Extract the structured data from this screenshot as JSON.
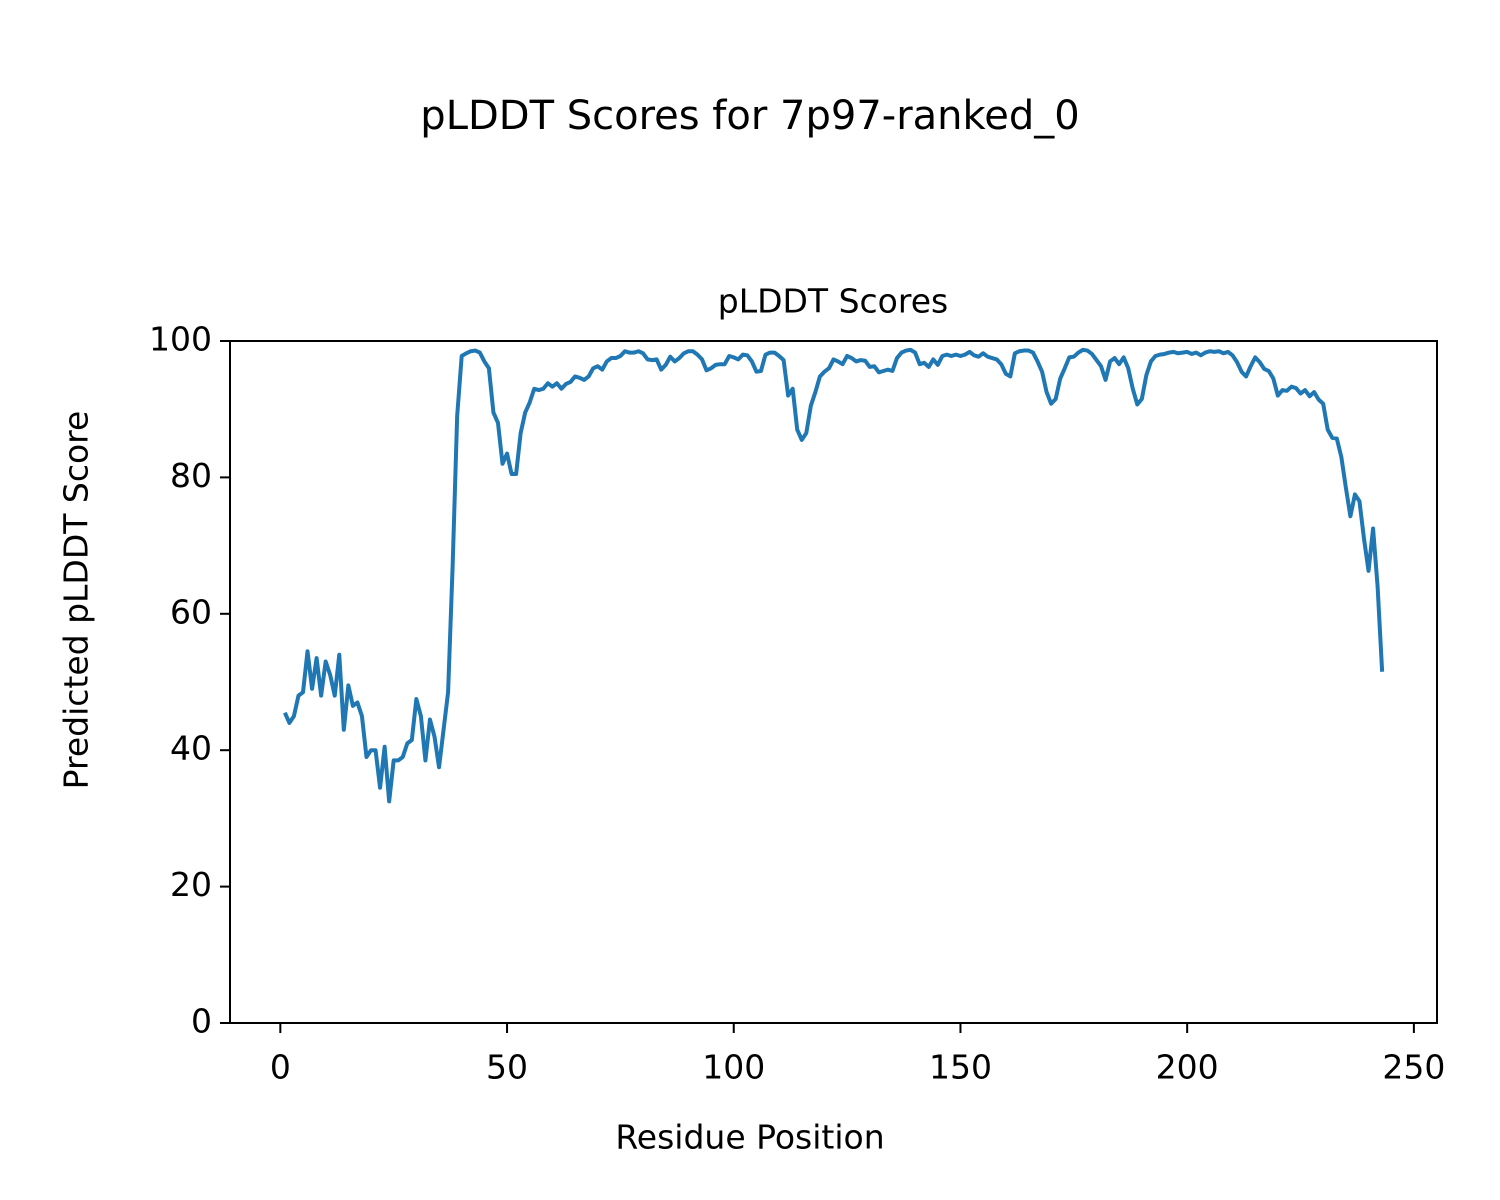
{
  "chart_data": {
    "type": "line",
    "suptitle": "pLDDT Scores for 7p97-ranked_0",
    "title": "pLDDT Scores",
    "xlabel": "Residue Position",
    "ylabel": "Predicted pLDDT Score",
    "xlim": [
      -11.1,
      255.1
    ],
    "ylim": [
      0,
      100
    ],
    "xticks": [
      0,
      50,
      100,
      150,
      200,
      250
    ],
    "yticks": [
      0,
      20,
      40,
      60,
      80,
      100
    ],
    "x": [
      1,
      2,
      3,
      4,
      5,
      6,
      7,
      8,
      9,
      10,
      11,
      12,
      13,
      14,
      15,
      16,
      17,
      18,
      19,
      20,
      21,
      22,
      23,
      24,
      25,
      26,
      27,
      28,
      29,
      30,
      31,
      32,
      33,
      34,
      35,
      36,
      37,
      38,
      39,
      40,
      41,
      42,
      43,
      44,
      45,
      46,
      47,
      48,
      49,
      50,
      51,
      52,
      53,
      54,
      55,
      56,
      57,
      58,
      59,
      60,
      61,
      62,
      63,
      64,
      65,
      66,
      67,
      68,
      69,
      70,
      71,
      72,
      73,
      74,
      75,
      76,
      77,
      78,
      79,
      80,
      81,
      82,
      83,
      84,
      85,
      86,
      87,
      88,
      89,
      90,
      91,
      92,
      93,
      94,
      95,
      96,
      97,
      98,
      99,
      100,
      101,
      102,
      103,
      104,
      105,
      106,
      107,
      108,
      109,
      110,
      111,
      112,
      113,
      114,
      115,
      116,
      117,
      118,
      119,
      120,
      121,
      122,
      123,
      124,
      125,
      126,
      127,
      128,
      129,
      130,
      131,
      132,
      133,
      134,
      135,
      136,
      137,
      138,
      139,
      140,
      141,
      142,
      143,
      144,
      145,
      146,
      147,
      148,
      149,
      150,
      151,
      152,
      153,
      154,
      155,
      156,
      157,
      158,
      159,
      160,
      161,
      162,
      163,
      164,
      165,
      166,
      167,
      168,
      169,
      170,
      171,
      172,
      173,
      174,
      175,
      176,
      177,
      178,
      179,
      180,
      181,
      182,
      183,
      184,
      185,
      186,
      187,
      188,
      189,
      190,
      191,
      192,
      193,
      194,
      195,
      196,
      197,
      198,
      199,
      200,
      201,
      202,
      203,
      204,
      205,
      206,
      207,
      208,
      209,
      210,
      211,
      212,
      213,
      214,
      215,
      216,
      217,
      218,
      219,
      220,
      221,
      222,
      223,
      224,
      225,
      226,
      227,
      228,
      229,
      230,
      231,
      232,
      233,
      234,
      235,
      236,
      237,
      238,
      239,
      240,
      241,
      242,
      243
    ],
    "series": [
      {
        "name": "pLDDT",
        "color": "#1f77b4",
        "values": [
          45.5,
          44,
          45,
          48,
          48.5,
          54.5,
          49,
          53.5,
          48,
          53,
          51,
          48,
          54,
          43,
          49.5,
          46.5,
          47,
          45,
          39,
          40,
          40,
          34.5,
          40.5,
          32.5,
          38.5,
          38.5,
          39,
          41,
          41.5,
          47.5,
          45,
          38.5,
          44.5,
          42,
          37.5,
          43,
          48.5,
          67,
          89,
          97.8,
          98.2,
          98.5,
          98.6,
          98.3,
          97,
          96,
          89.5,
          88,
          82,
          83.5,
          80.5,
          80.5,
          86.5,
          89.5,
          91,
          93,
          92.8,
          93,
          93.8,
          93.3,
          93.8,
          93,
          93.7,
          94,
          94.8,
          94.6,
          94.3,
          94.8,
          96,
          96.3,
          95.8,
          97,
          97.5,
          97.5,
          97.8,
          98.5,
          98.3,
          98.3,
          98.5,
          98.2,
          97.3,
          97.2,
          97.3,
          95.8,
          96.5,
          97.7,
          97,
          97.5,
          98.2,
          98.5,
          98.5,
          98,
          97.3,
          95.7,
          96,
          96.5,
          96.6,
          96.6,
          97.8,
          97.6,
          97.3,
          98,
          97.9,
          97,
          95.5,
          95.6,
          98,
          98.3,
          98.3,
          97.8,
          97.2,
          92,
          93,
          87,
          85.5,
          86.5,
          90.5,
          92.5,
          94.8,
          95.5,
          96,
          97.3,
          97,
          96.6,
          97.8,
          97.5,
          97,
          97.2,
          97.1,
          96.2,
          96.3,
          95.4,
          95.6,
          95.8,
          95.6,
          97.5,
          98.3,
          98.6,
          98.7,
          98.3,
          96.6,
          96.8,
          96.2,
          97.3,
          96.5,
          97.8,
          98,
          97.8,
          98,
          97.8,
          98,
          98.4,
          97.9,
          97.7,
          98.2,
          97.7,
          97.5,
          97.3,
          96.6,
          95.2,
          94.8,
          98.2,
          98.5,
          98.6,
          98.6,
          98.3,
          97,
          95.5,
          92.5,
          90.8,
          91.5,
          94.5,
          96,
          97.6,
          97.7,
          98.3,
          98.7,
          98.6,
          98.1,
          97.2,
          96.3,
          94.3,
          97,
          97.5,
          96.6,
          97.6,
          96,
          93,
          90.7,
          91.5,
          95,
          97,
          97.8,
          98,
          98.1,
          98.3,
          98.4,
          98.2,
          98.3,
          98.4,
          98.1,
          98.3,
          97.9,
          98.3,
          98.5,
          98.4,
          98.5,
          98.2,
          98.4,
          97.9,
          96.9,
          95.5,
          94.8,
          96.3,
          97.6,
          96.9,
          95.9,
          95.6,
          94.5,
          92,
          92.8,
          92.7,
          93.3,
          93.1,
          92.3,
          92.8,
          91.9,
          92.5,
          91.4,
          90.8,
          87,
          85.8,
          85.7,
          83,
          78.5,
          74.3,
          77.5,
          76.5,
          71,
          66.3,
          72.5,
          64,
          51.5
        ]
      }
    ]
  }
}
